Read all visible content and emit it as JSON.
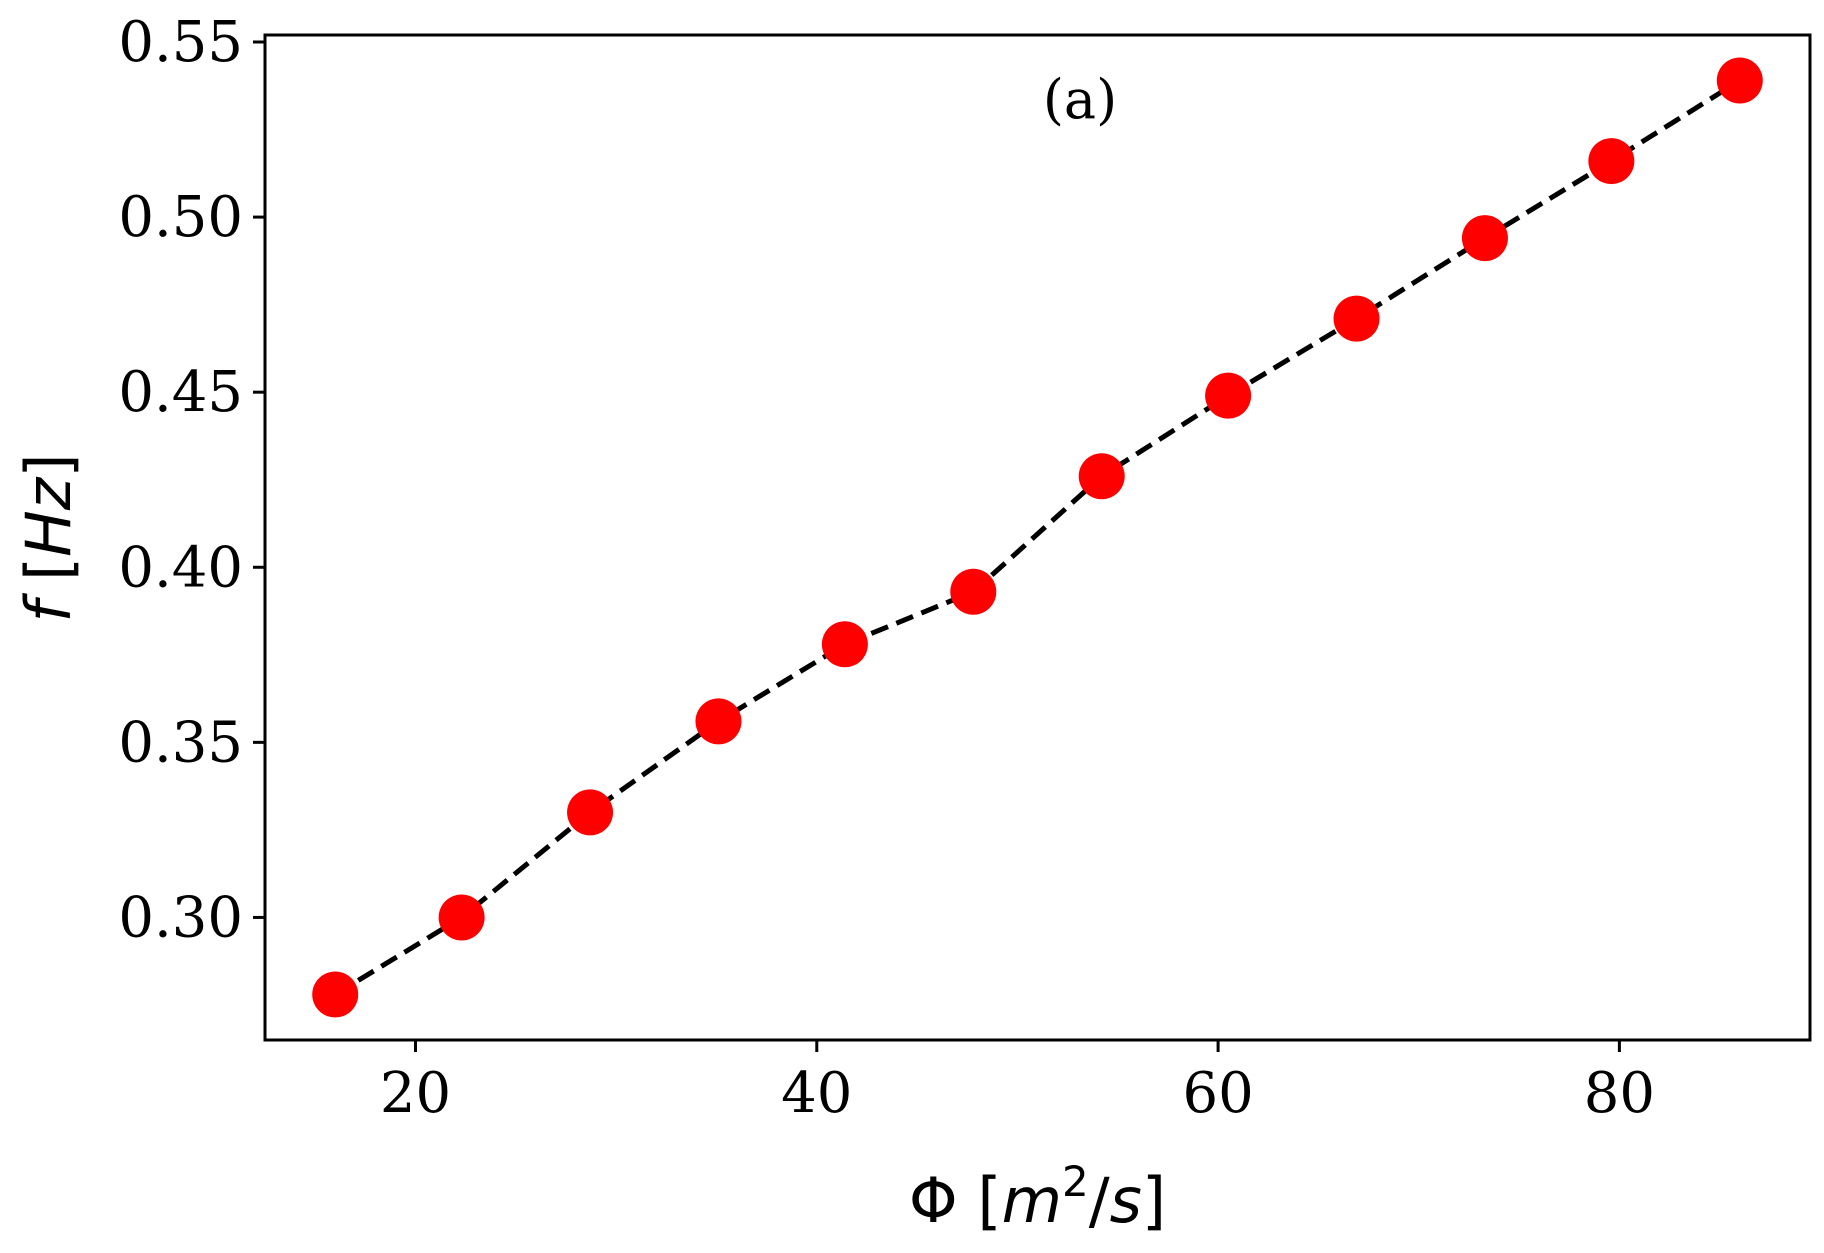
{
  "chart_data": {
    "type": "scatter",
    "panel_label": "(a)",
    "xlabel": "Φ [m²/s]",
    "ylabel": "f [Hz]",
    "xlim": [
      12.5,
      89.5
    ],
    "ylim": [
      0.265,
      0.552
    ],
    "xticks": [
      20,
      40,
      60,
      80
    ],
    "xtick_labels": [
      "20",
      "40",
      "60",
      "80"
    ],
    "yticks": [
      0.3,
      0.35,
      0.4,
      0.45,
      0.5,
      0.55
    ],
    "ytick_labels": [
      "0.30",
      "0.35",
      "0.40",
      "0.45",
      "0.50",
      "0.55"
    ],
    "grid": false,
    "series": [
      {
        "marker_color": "#ff0000",
        "line_color": "#000000",
        "line_style": "dashed",
        "x": [
          16.0,
          22.3,
          28.7,
          35.1,
          41.4,
          47.8,
          54.2,
          60.5,
          66.9,
          73.3,
          79.6,
          86.0
        ],
        "y": [
          0.278,
          0.3,
          0.33,
          0.356,
          0.378,
          0.393,
          0.426,
          0.449,
          0.471,
          0.494,
          0.516,
          0.539
        ]
      }
    ]
  }
}
